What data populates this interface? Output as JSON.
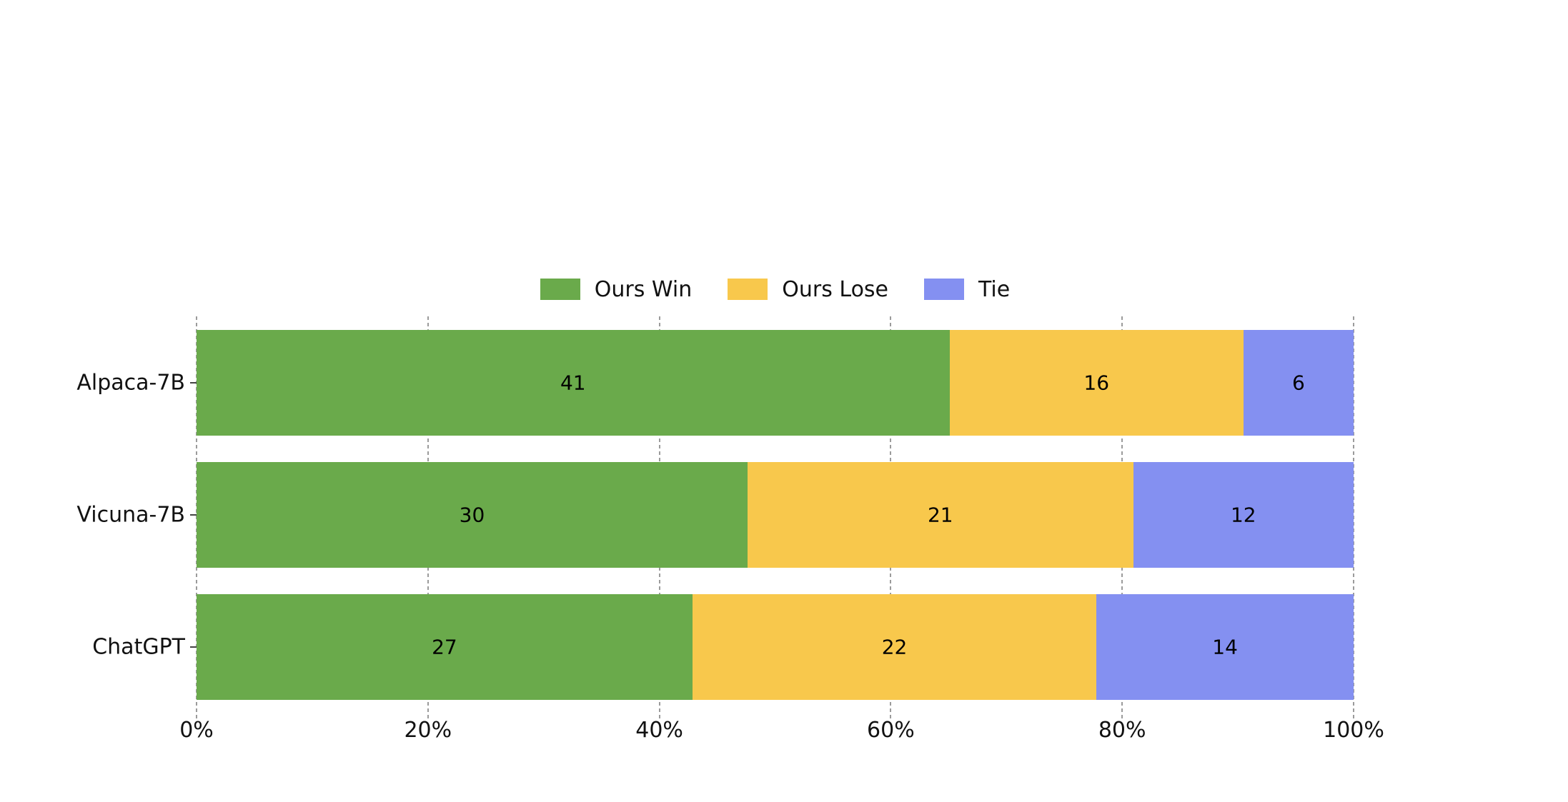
{
  "figure": {
    "background": "#ffffff"
  },
  "chart_data": {
    "type": "bar",
    "orientation": "horizontal",
    "stacked": true,
    "title": "",
    "xlabel": "",
    "ylabel": "",
    "categories": [
      "Alpaca-7B",
      "Vicuna-7B",
      "ChatGPT"
    ],
    "series": [
      {
        "name": "Ours Win",
        "color": "#6aaa4b",
        "values": [
          41,
          30,
          27
        ]
      },
      {
        "name": "Ours Lose",
        "color": "#f8c84c",
        "values": [
          16,
          21,
          22
        ]
      },
      {
        "name": "Tie",
        "color": "#8490f1",
        "values": [
          6,
          12,
          14
        ]
      }
    ],
    "row_totals": [
      63,
      63,
      63
    ],
    "x_axis": {
      "unit": "percent-of-row-total",
      "range": [
        0,
        100
      ],
      "ticks": [
        {
          "value": 0,
          "label": "0%"
        },
        {
          "value": 20,
          "label": "20%"
        },
        {
          "value": 40,
          "label": "40%"
        },
        {
          "value": 60,
          "label": "60%"
        },
        {
          "value": 80,
          "label": "80%"
        },
        {
          "value": 100,
          "label": "100%"
        }
      ]
    },
    "grid": {
      "axis": "x",
      "style": "dashed",
      "color": "#9b9b9b",
      "spines": "none"
    },
    "legend": {
      "position": "top-center",
      "frame": false,
      "labels": [
        "Ours Win",
        "Ours Lose",
        "Tie"
      ]
    },
    "bar_value_labels": {
      "color": "#000000",
      "position": "center"
    }
  }
}
